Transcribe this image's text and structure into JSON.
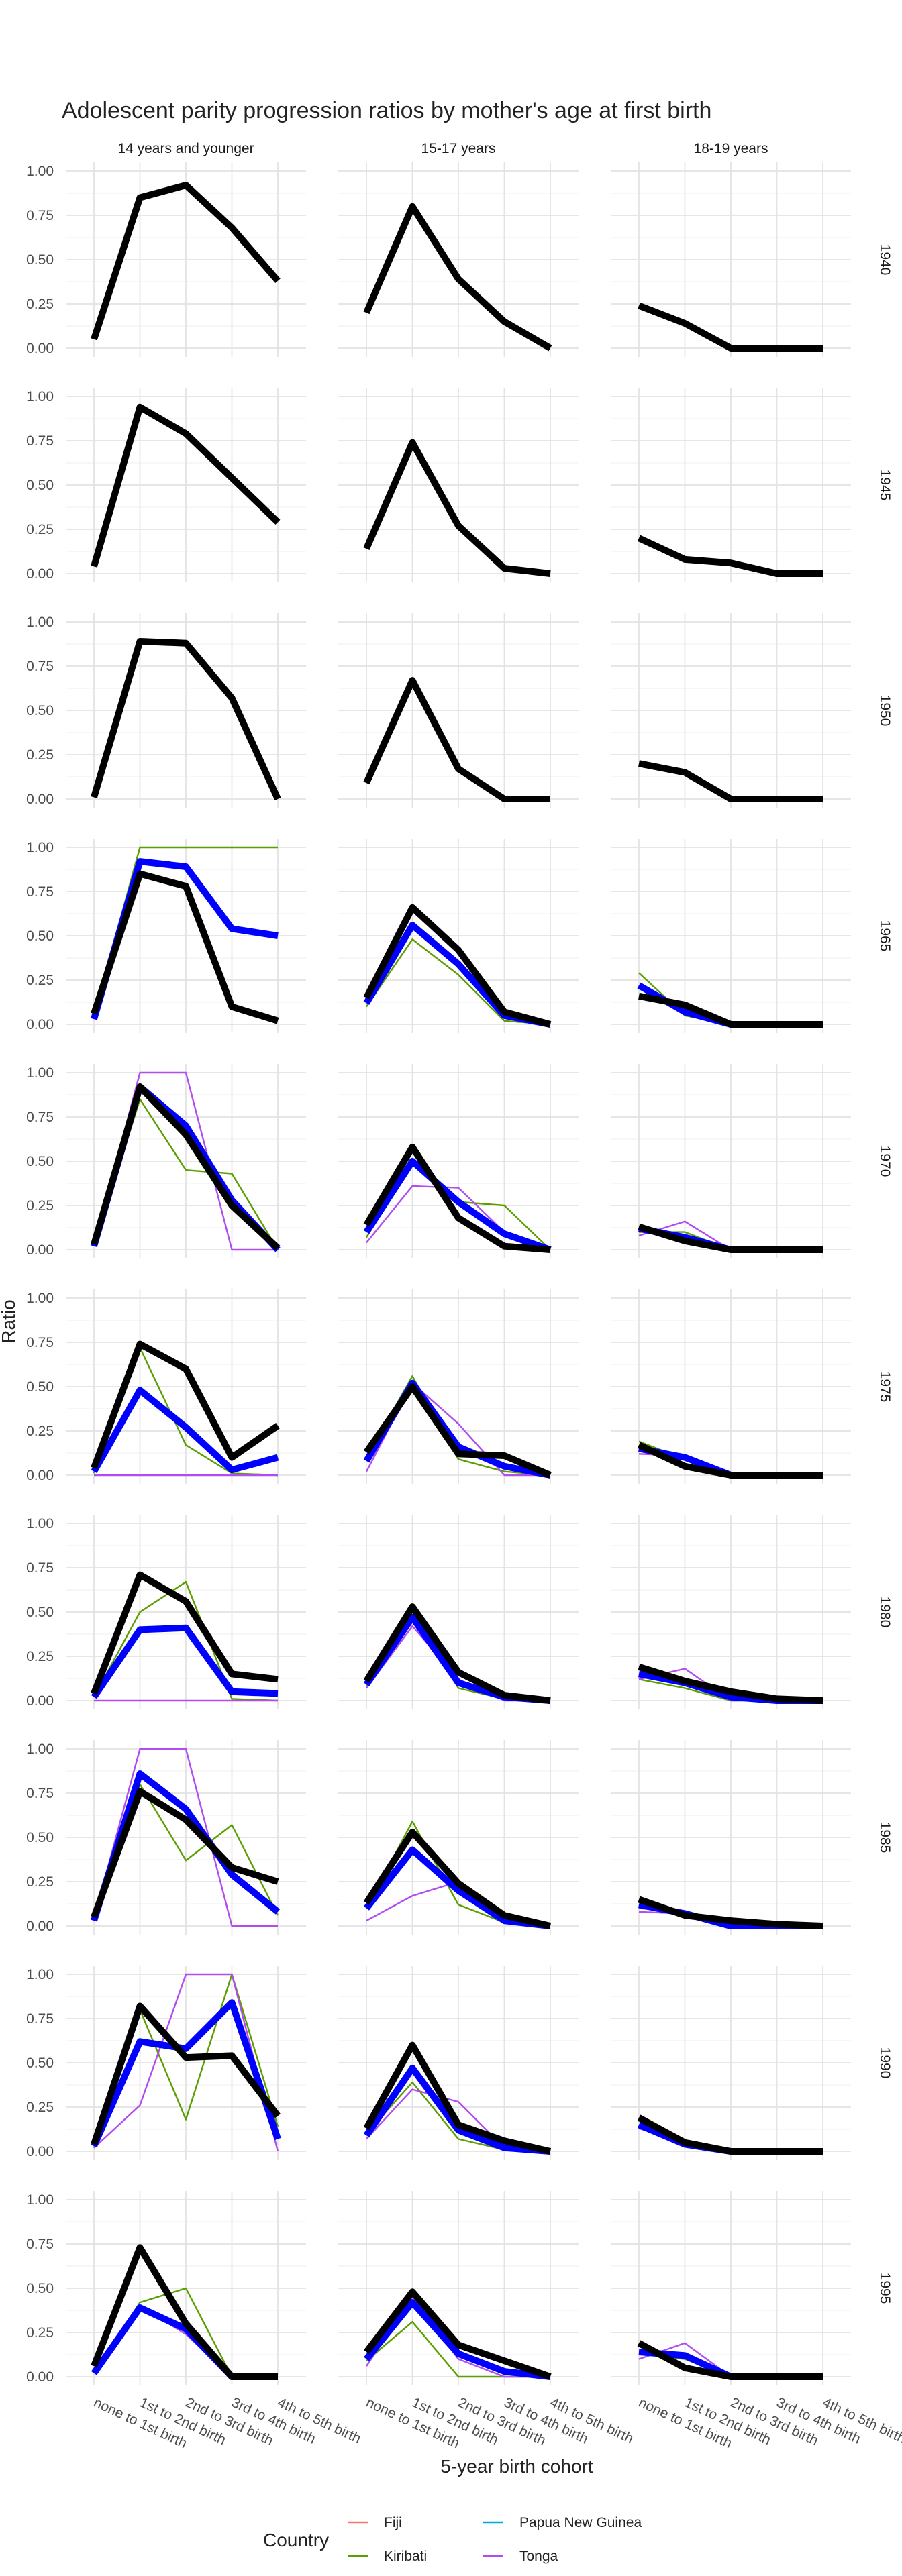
{
  "chart_data": {
    "type": "line",
    "title": "Adolescent parity progression ratios by mother's age at first birth",
    "xlabel": "5-year birth cohort",
    "ylabel": "Ratio",
    "ylim": [
      0,
      1
    ],
    "y_ticks": [
      "0.00",
      "0.25",
      "0.50",
      "0.75",
      "1.00"
    ],
    "categories": [
      "none to 1st birth",
      "1st to 2nd birth",
      "2nd to 3rd birth",
      "3rd to 4th birth",
      "4th to 5th birth"
    ],
    "columns": [
      "14 years and younger",
      "15-17 years",
      "18-19 years"
    ],
    "rows": [
      "1940",
      "1945",
      "1950",
      "1965",
      "1970",
      "1975",
      "1980",
      "1985",
      "1990",
      "1995"
    ],
    "legend": {
      "title": "Country",
      "entries": [
        {
          "name": "Fiji",
          "color": "#F8766D"
        },
        {
          "name": "Kiribati",
          "color": "#5A9E00"
        },
        {
          "name": "Papua New Guinea",
          "color": "#00A9D6"
        },
        {
          "name": "Tonga",
          "color": "#B04CF0"
        }
      ]
    },
    "series_styles": {
      "Kiribati": {
        "color": "#5A9E00",
        "weight": "thin"
      },
      "Tonga": {
        "color": "#B04CF0",
        "weight": "thin"
      },
      "Blue": {
        "color": "#0000FF",
        "weight": "bold"
      },
      "Black": {
        "color": "#000000",
        "weight": "bold"
      }
    },
    "panels": {
      "1940": [
        {
          "Black": [
            0.05,
            0.85,
            0.92,
            0.68,
            0.38
          ]
        },
        {
          "Black": [
            0.2,
            0.8,
            0.39,
            0.15,
            0.0
          ]
        },
        {
          "Black": [
            0.24,
            0.14,
            0.0,
            0.0,
            0.0
          ]
        }
      ],
      "1945": [
        {
          "Black": [
            0.04,
            0.94,
            0.79,
            0.54,
            0.29
          ]
        },
        {
          "Black": [
            0.14,
            0.74,
            0.27,
            0.03,
            0.0
          ]
        },
        {
          "Black": [
            0.2,
            0.08,
            0.06,
            0.0,
            0.0
          ]
        }
      ],
      "1950": [
        {
          "Black": [
            0.01,
            0.89,
            0.88,
            0.57,
            0.0
          ]
        },
        {
          "Black": [
            0.09,
            0.67,
            0.17,
            0.0,
            0.0
          ]
        },
        {
          "Black": [
            0.2,
            0.15,
            0.0,
            0.0,
            0.0
          ]
        }
      ],
      "1965": [
        {
          "Kiribati": [
            0.05,
            1.0,
            1.0,
            1.0,
            1.0
          ],
          "Blue": [
            0.03,
            0.92,
            0.89,
            0.54,
            0.5
          ],
          "Black": [
            0.06,
            0.85,
            0.78,
            0.1,
            0.02
          ]
        },
        {
          "Kiribati": [
            0.1,
            0.48,
            0.28,
            0.02,
            0.0
          ],
          "Blue": [
            0.12,
            0.56,
            0.34,
            0.05,
            0.0
          ],
          "Black": [
            0.15,
            0.66,
            0.42,
            0.07,
            0.0
          ]
        },
        {
          "Kiribati": [
            0.29,
            0.05,
            0.0,
            0.0,
            0.0
          ],
          "Blue": [
            0.22,
            0.07,
            0.0,
            0.0,
            0.0
          ],
          "Black": [
            0.16,
            0.11,
            0.0,
            0.0,
            0.0
          ]
        }
      ],
      "1970": [
        {
          "Kiribati": [
            0.02,
            0.85,
            0.45,
            0.43,
            0.0
          ],
          "Tonga": [
            0.02,
            1.0,
            1.0,
            0.0,
            0.0
          ],
          "Blue": [
            0.02,
            0.92,
            0.7,
            0.28,
            0.0
          ],
          "Black": [
            0.03,
            0.92,
            0.65,
            0.25,
            0.01
          ]
        },
        {
          "Kiribati": [
            0.07,
            0.49,
            0.27,
            0.25,
            0.0
          ],
          "Tonga": [
            0.04,
            0.36,
            0.35,
            0.1,
            0.0
          ],
          "Blue": [
            0.1,
            0.5,
            0.27,
            0.09,
            0.0
          ],
          "Black": [
            0.14,
            0.58,
            0.18,
            0.02,
            0.0
          ]
        },
        {
          "Kiribati": [
            0.1,
            0.1,
            0.0,
            0.0,
            0.0
          ],
          "Tonga": [
            0.08,
            0.16,
            0.0,
            0.0,
            0.0
          ],
          "Blue": [
            0.12,
            0.07,
            0.0,
            0.0,
            0.0
          ],
          "Black": [
            0.13,
            0.05,
            0.0,
            0.0,
            0.0
          ]
        }
      ],
      "1975": [
        {
          "Kiribati": [
            0.01,
            0.72,
            0.17,
            0.01,
            0.0
          ],
          "Tonga": [
            0.0,
            0.0,
            0.0,
            0.0,
            0.0
          ],
          "Blue": [
            0.02,
            0.48,
            0.27,
            0.03,
            0.1
          ],
          "Black": [
            0.04,
            0.74,
            0.6,
            0.1,
            0.28
          ]
        },
        {
          "Kiribati": [
            0.1,
            0.56,
            0.09,
            0.02,
            0.0
          ],
          "Tonga": [
            0.02,
            0.52,
            0.29,
            0.0,
            0.0
          ],
          "Blue": [
            0.08,
            0.52,
            0.16,
            0.05,
            0.0
          ],
          "Black": [
            0.13,
            0.5,
            0.12,
            0.11,
            0.0
          ]
        },
        {
          "Kiribati": [
            0.19,
            0.09,
            0.0,
            0.0,
            0.0
          ],
          "Tonga": [
            0.12,
            0.11,
            0.0,
            0.0,
            0.0
          ],
          "Blue": [
            0.15,
            0.1,
            0.0,
            0.0,
            0.0
          ],
          "Black": [
            0.17,
            0.05,
            0.0,
            0.0,
            0.0
          ]
        }
      ],
      "1980": [
        {
          "Kiribati": [
            0.02,
            0.5,
            0.67,
            0.01,
            0.0
          ],
          "Tonga": [
            0.0,
            0.0,
            0.0,
            0.0,
            0.0
          ],
          "Blue": [
            0.02,
            0.4,
            0.41,
            0.05,
            0.04
          ],
          "Black": [
            0.04,
            0.71,
            0.56,
            0.15,
            0.12
          ]
        },
        {
          "Kiribati": [
            0.08,
            0.5,
            0.07,
            0.01,
            0.0
          ],
          "Tonga": [
            0.07,
            0.42,
            0.12,
            0.0,
            0.0
          ],
          "Blue": [
            0.09,
            0.47,
            0.1,
            0.02,
            0.0
          ],
          "Black": [
            0.11,
            0.53,
            0.16,
            0.03,
            0.0
          ]
        },
        {
          "Kiribati": [
            0.12,
            0.07,
            0.0,
            0.0,
            0.0
          ],
          "Tonga": [
            0.12,
            0.18,
            0.0,
            0.0,
            0.0
          ],
          "Blue": [
            0.15,
            0.1,
            0.02,
            0.0,
            0.0
          ],
          "Black": [
            0.19,
            0.11,
            0.05,
            0.01,
            0.0
          ]
        }
      ],
      "1985": [
        {
          "Kiribati": [
            0.04,
            0.8,
            0.37,
            0.57,
            0.06
          ],
          "Tonga": [
            0.04,
            1.0,
            1.0,
            0.0,
            0.0
          ],
          "Blue": [
            0.03,
            0.86,
            0.66,
            0.29,
            0.08
          ],
          "Black": [
            0.05,
            0.76,
            0.6,
            0.33,
            0.25
          ]
        },
        {
          "Kiribati": [
            0.1,
            0.59,
            0.12,
            0.02,
            0.0
          ],
          "Tonga": [
            0.03,
            0.17,
            0.25,
            0.04,
            0.0
          ],
          "Blue": [
            0.1,
            0.43,
            0.2,
            0.03,
            0.0
          ],
          "Black": [
            0.13,
            0.53,
            0.24,
            0.06,
            0.0
          ]
        },
        {
          "Kiribati": [
            0.1,
            0.08,
            0.0,
            0.0,
            0.0
          ],
          "Tonga": [
            0.08,
            0.07,
            0.01,
            0.0,
            0.0
          ],
          "Blue": [
            0.12,
            0.07,
            0.0,
            0.0,
            0.0
          ],
          "Black": [
            0.15,
            0.06,
            0.03,
            0.01,
            0.0
          ]
        }
      ],
      "1990": [
        {
          "Kiribati": [
            0.02,
            0.8,
            0.18,
            1.0,
            0.14
          ],
          "Tonga": [
            0.02,
            0.26,
            1.0,
            1.0,
            0.0
          ],
          "Blue": [
            0.03,
            0.62,
            0.58,
            0.84,
            0.07
          ],
          "Black": [
            0.04,
            0.82,
            0.53,
            0.54,
            0.2
          ]
        },
        {
          "Kiribati": [
            0.1,
            0.39,
            0.07,
            0.01,
            0.0
          ],
          "Tonga": [
            0.07,
            0.35,
            0.28,
            0.02,
            0.0
          ],
          "Blue": [
            0.09,
            0.47,
            0.12,
            0.02,
            0.0
          ],
          "Black": [
            0.13,
            0.6,
            0.15,
            0.06,
            0.0
          ]
        },
        {
          "Kiribati": [
            0.15,
            0.06,
            0.0,
            0.0,
            0.0
          ],
          "Tonga": [
            0.13,
            0.05,
            0.0,
            0.0,
            0.0
          ],
          "Blue": [
            0.15,
            0.04,
            0.0,
            0.0,
            0.0
          ],
          "Black": [
            0.19,
            0.05,
            0.0,
            0.0,
            0.0
          ]
        }
      ],
      "1995": [
        {
          "Kiribati": [
            0.02,
            0.42,
            0.5,
            0.0,
            0.0
          ],
          "Tonga": [
            0.02,
            0.4,
            0.24,
            0.0,
            0.0
          ],
          "Blue": [
            0.02,
            0.39,
            0.27,
            0.0,
            0.0
          ],
          "Black": [
            0.06,
            0.73,
            0.3,
            0.0,
            0.0
          ]
        },
        {
          "Kiribati": [
            0.09,
            0.31,
            0.0,
            0.0,
            0.0
          ],
          "Tonga": [
            0.06,
            0.45,
            0.1,
            0.0,
            0.0
          ],
          "Blue": [
            0.1,
            0.42,
            0.13,
            0.03,
            0.0
          ],
          "Black": [
            0.14,
            0.48,
            0.18,
            0.09,
            0.0
          ]
        },
        {
          "Kiribati": [
            0.13,
            0.1,
            0.0,
            0.0,
            0.0
          ],
          "Tonga": [
            0.1,
            0.19,
            0.0,
            0.0,
            0.0
          ],
          "Blue": [
            0.14,
            0.12,
            0.0,
            0.0,
            0.0
          ],
          "Black": [
            0.19,
            0.05,
            0.0,
            0.0,
            0.0
          ]
        }
      ]
    }
  }
}
